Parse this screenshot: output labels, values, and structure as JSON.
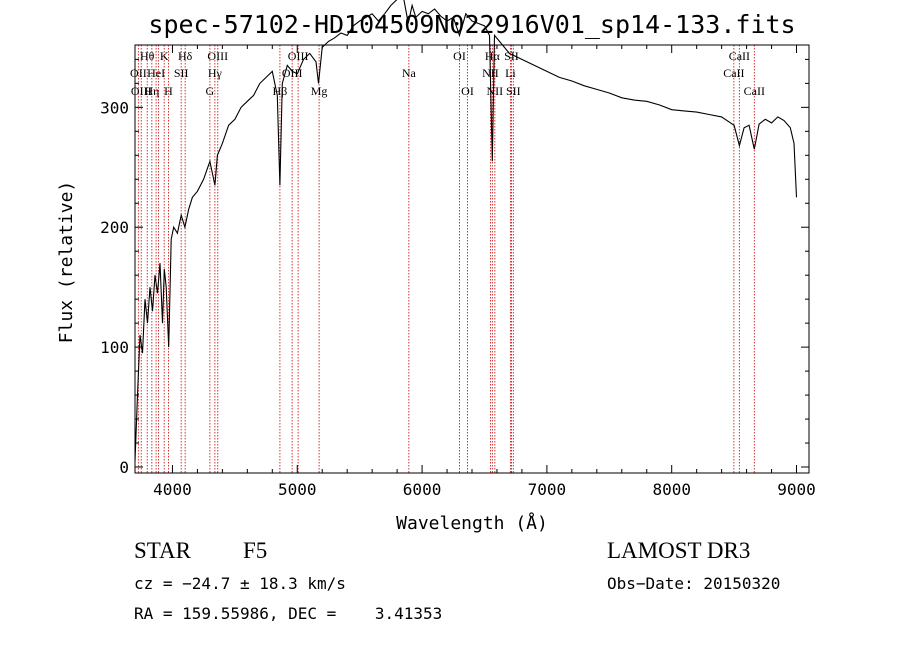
{
  "chart_data": {
    "type": "line",
    "title": "spec-57102-HD104509N022916V01_sp14-133.fits",
    "xlabel": "Wavelength (Å)",
    "ylabel": "Flux (relative)",
    "xlim": [
      3700,
      9100
    ],
    "ylim": [
      -5,
      352
    ],
    "xticks": [
      4000,
      5000,
      6000,
      7000,
      8000,
      9000
    ],
    "yticks": [
      0,
      100,
      200,
      300
    ],
    "series": [
      {
        "name": "spectrum",
        "x": [
          3700,
          3720,
          3740,
          3760,
          3780,
          3800,
          3820,
          3840,
          3860,
          3880,
          3900,
          3920,
          3935,
          3950,
          3970,
          3990,
          4010,
          4040,
          4070,
          4100,
          4130,
          4160,
          4200,
          4250,
          4300,
          4340,
          4360,
          4400,
          4450,
          4500,
          4550,
          4600,
          4650,
          4700,
          4750,
          4800,
          4840,
          4861,
          4880,
          4920,
          4960,
          5000,
          5050,
          5100,
          5150,
          5170,
          5200,
          5250,
          5300,
          5350,
          5400,
          5450,
          5500,
          5550,
          5600,
          5650,
          5700,
          5750,
          5800,
          5850,
          5890,
          5920,
          5950,
          6000,
          6050,
          6100,
          6150,
          6200,
          6250,
          6300,
          6350,
          6400,
          6450,
          6500,
          6540,
          6563,
          6580,
          6620,
          6700,
          6800,
          6900,
          7000,
          7100,
          7200,
          7300,
          7400,
          7500,
          7600,
          7700,
          7800,
          7900,
          8000,
          8100,
          8200,
          8300,
          8400,
          8500,
          8542,
          8580,
          8620,
          8662,
          8700,
          8750,
          8800,
          8850,
          8900,
          8950,
          8980,
          9000
        ],
        "values": [
          5,
          60,
          110,
          95,
          140,
          120,
          150,
          130,
          160,
          145,
          170,
          120,
          165,
          150,
          100,
          190,
          200,
          195,
          210,
          200,
          215,
          225,
          230,
          240,
          255,
          235,
          260,
          270,
          285,
          290,
          300,
          305,
          310,
          320,
          325,
          330,
          310,
          235,
          320,
          335,
          330,
          328,
          340,
          345,
          338,
          320,
          350,
          355,
          358,
          362,
          360,
          368,
          372,
          375,
          378,
          372,
          378,
          385,
          390,
          392,
          370,
          385,
          375,
          380,
          378,
          382,
          376,
          372,
          375,
          360,
          378,
          372,
          370,
          368,
          360,
          255,
          360,
          355,
          345,
          340,
          335,
          330,
          325,
          322,
          318,
          315,
          312,
          308,
          306,
          305,
          302,
          298,
          297,
          296,
          294,
          292,
          285,
          268,
          283,
          285,
          265,
          286,
          290,
          287,
          292,
          289,
          283,
          270,
          225
        ]
      }
    ],
    "lines": [
      {
        "w": 3727,
        "label": "OII",
        "row": 1
      },
      {
        "w": 3750,
        "label": "OIII",
        "row": 2
      },
      {
        "w": 3798,
        "label": "Hθ",
        "row": 0
      },
      {
        "w": 3835,
        "label": "Hη",
        "row": 2
      },
      {
        "w": 3869,
        "label": "HeI",
        "row": 1
      },
      {
        "w": 3889,
        "label": "",
        "row": 0
      },
      {
        "w": 3934,
        "label": "K",
        "row": 0
      },
      {
        "w": 3968,
        "label": "H",
        "row": 2
      },
      {
        "w": 4070,
        "label": "SII",
        "row": 1
      },
      {
        "w": 4102,
        "label": "Hδ",
        "row": 0
      },
      {
        "w": 4300,
        "label": "G",
        "row": 2
      },
      {
        "w": 4340,
        "label": "Hγ",
        "row": 1
      },
      {
        "w": 4363,
        "label": "OIII",
        "row": 0
      },
      {
        "w": 4861,
        "label": "Hβ",
        "row": 2
      },
      {
        "w": 4959,
        "label": "OIII",
        "row": 1
      },
      {
        "w": 5007,
        "label": "OIII",
        "row": 0
      },
      {
        "w": 5175,
        "label": "Mg",
        "row": 2
      },
      {
        "w": 5894,
        "label": "Na",
        "row": 1
      },
      {
        "w": 6300,
        "label": "OI",
        "row": 0
      },
      {
        "w": 6364,
        "label": "OI",
        "row": 2
      },
      {
        "w": 6548,
        "label": "NII",
        "row": 1
      },
      {
        "w": 6563,
        "label": "Hα",
        "row": 0
      },
      {
        "w": 6583,
        "label": "NII",
        "row": 2
      },
      {
        "w": 6708,
        "label": "Li",
        "row": 1
      },
      {
        "w": 6716,
        "label": "SII",
        "row": 0
      },
      {
        "w": 6731,
        "label": "SII",
        "row": 2
      },
      {
        "w": 8498,
        "label": "CaII",
        "row": 1
      },
      {
        "w": 8542,
        "label": "CaII",
        "row": 0
      },
      {
        "w": 8662,
        "label": "CaII",
        "row": 2
      }
    ]
  },
  "info": {
    "object_type": "STAR",
    "subclass": "F5",
    "survey": "LAMOST DR3",
    "cz": "cz = −24.7 ± 18.3 km/s",
    "obs_date": "Obs−Date: 20150320",
    "coords": "RA = 159.55986, DEC =    3.41353"
  }
}
